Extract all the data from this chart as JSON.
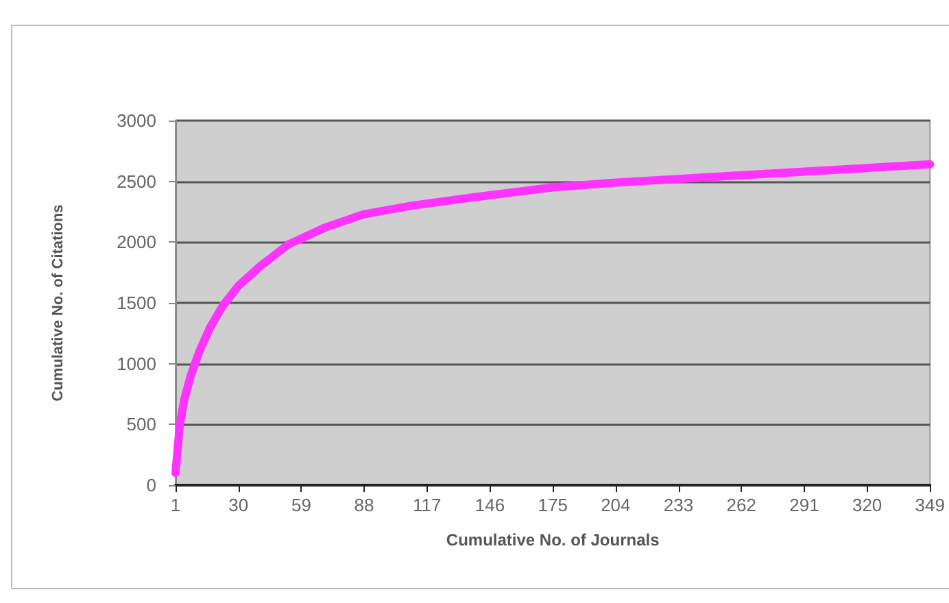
{
  "chart_data": {
    "type": "line",
    "xlabel": "Cumulative No. of Journals",
    "ylabel": "Cumulative No. of Citations",
    "x": [
      1,
      2,
      3,
      5,
      8,
      12,
      17,
      23,
      30,
      40,
      53,
      70,
      88,
      110,
      139,
      175,
      204,
      233,
      262,
      291,
      320,
      349
    ],
    "series": [
      {
        "color": "#ff33ff",
        "values": [
          100,
          300,
          500,
          700,
          900,
          1100,
          1300,
          1480,
          1640,
          1800,
          1980,
          2120,
          2230,
          2300,
          2370,
          2450,
          2490,
          2520,
          2550,
          2580,
          2610,
          2640
        ]
      }
    ],
    "xlim": [
      1,
      349
    ],
    "xticks": [
      1,
      30,
      59,
      88,
      117,
      146,
      175,
      204,
      233,
      262,
      291,
      320,
      349
    ],
    "ylim": [
      0,
      3000
    ],
    "yticks": [
      0,
      500,
      1000,
      1500,
      2000,
      2500,
      3000
    ],
    "grid": "y",
    "marker": "none",
    "line_style": "solid"
  }
}
